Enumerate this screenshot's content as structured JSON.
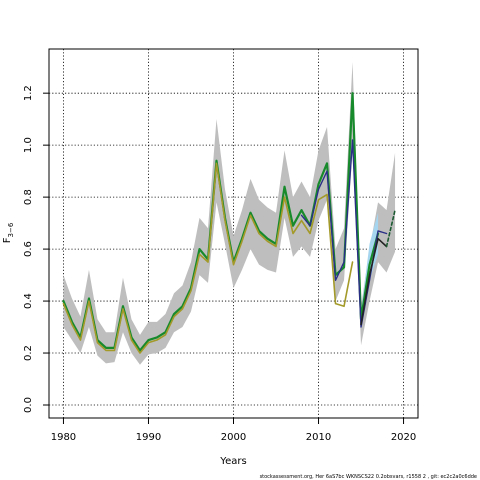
{
  "chart_data": {
    "type": "line",
    "xlabel": "Years",
    "ylabel_main": "F",
    "ylabel_sub": "3−6",
    "footer": "stockassessment.org,  Her  6aS7bc  WKNSCS22  0.2obsvars,  r1558 2 ,  git:  ec2c2a0c6dde",
    "xlim": [
      1978.3,
      2021.7
    ],
    "ylim": [
      -0.05,
      1.37
    ],
    "xticks": [
      1980,
      1990,
      2000,
      2010,
      2020
    ],
    "xtick_labels": [
      "1980",
      "1990",
      "2000",
      "2010",
      "2020"
    ],
    "yticks": [
      0.0,
      0.2,
      0.4,
      0.6,
      0.8,
      1.0,
      1.2
    ],
    "ytick_labels": [
      "0.0",
      "0.2",
      "0.4",
      "0.6",
      "0.8",
      "1.0",
      "1.2"
    ],
    "grid": true,
    "colors": {
      "band": "#bebebe",
      "band_light_blue": "#a6d6ef",
      "green": "#178a2c",
      "olive": "#a39a2a",
      "blue": "#2a2f86",
      "black": "#222222",
      "darkgreen_dashed": "#1b5a31"
    },
    "bands": [
      {
        "name": "band",
        "x": [
          1980,
          1981,
          1982,
          1983,
          1984,
          1985,
          1986,
          1987,
          1988,
          1989,
          1990,
          1991,
          1992,
          1993,
          1994,
          1995,
          1996,
          1997,
          1998,
          1999,
          2000,
          2001,
          2002,
          2003,
          2004,
          2005,
          2006,
          2007,
          2008,
          2009,
          2010,
          2011,
          2012,
          2013,
          2014,
          2015,
          2016,
          2017,
          2018,
          2019
        ],
        "upper": [
          0.5,
          0.41,
          0.34,
          0.52,
          0.33,
          0.28,
          0.28,
          0.49,
          0.33,
          0.27,
          0.32,
          0.32,
          0.35,
          0.43,
          0.46,
          0.55,
          0.72,
          0.68,
          1.1,
          0.83,
          0.65,
          0.75,
          0.87,
          0.79,
          0.76,
          0.74,
          0.98,
          0.8,
          0.86,
          0.8,
          0.98,
          1.07,
          0.6,
          0.68,
          1.32,
          0.38,
          0.6,
          0.78,
          0.75,
          0.97
        ],
        "lower": [
          0.3,
          0.25,
          0.2,
          0.3,
          0.19,
          0.16,
          0.165,
          0.28,
          0.2,
          0.155,
          0.195,
          0.2,
          0.22,
          0.28,
          0.3,
          0.36,
          0.5,
          0.47,
          0.78,
          0.62,
          0.45,
          0.52,
          0.6,
          0.54,
          0.52,
          0.51,
          0.72,
          0.57,
          0.61,
          0.57,
          0.71,
          0.79,
          0.4,
          0.48,
          0.98,
          0.23,
          0.4,
          0.55,
          0.51,
          0.59
        ]
      },
      {
        "name": "band_light_blue",
        "x": [
          2015,
          2016,
          2017
        ],
        "upper": [
          0.36,
          0.62,
          0.74
        ],
        "lower": [
          0.3,
          0.48,
          0.58
        ]
      }
    ],
    "series": [
      {
        "color": "green",
        "width": 2.2,
        "dashed": false,
        "x": [
          1980,
          1981,
          1982,
          1983,
          1984,
          1985,
          1986,
          1987,
          1988,
          1989,
          1990,
          1991,
          1992,
          1993,
          1994,
          1995,
          1996,
          1997,
          1998,
          1999,
          2000,
          2001,
          2002,
          2003,
          2004,
          2005,
          2006,
          2007,
          2008,
          2009,
          2010,
          2011,
          2012,
          2013,
          2014,
          2015,
          2016,
          2017
        ],
        "y": [
          0.4,
          0.32,
          0.26,
          0.41,
          0.25,
          0.22,
          0.22,
          0.38,
          0.26,
          0.21,
          0.25,
          0.26,
          0.28,
          0.35,
          0.38,
          0.45,
          0.6,
          0.56,
          0.94,
          0.72,
          0.55,
          0.64,
          0.74,
          0.67,
          0.64,
          0.62,
          0.84,
          0.69,
          0.75,
          0.69,
          0.85,
          0.93,
          0.5,
          0.53,
          1.2,
          0.33,
          0.54,
          0.66
        ]
      },
      {
        "color": "blue",
        "width": 1.4,
        "dashed": false,
        "x": [
          2008,
          2009,
          2010,
          2011,
          2012,
          2013,
          2014,
          2015,
          2016,
          2017,
          2018
        ],
        "y": [
          0.73,
          0.69,
          0.83,
          0.9,
          0.48,
          0.55,
          1.02,
          0.3,
          0.48,
          0.67,
          0.66
        ]
      },
      {
        "color": "olive",
        "width": 1.6,
        "dashed": false,
        "x": [
          1980,
          1981,
          1982,
          1983,
          1984,
          1985,
          1986,
          1987,
          1988,
          1989,
          1990,
          1991,
          1992,
          1993,
          1994,
          1995,
          1996,
          1997,
          1998,
          1999,
          2000,
          2001,
          2002,
          2003,
          2004,
          2005,
          2006,
          2007,
          2008,
          2009,
          2010,
          2011,
          2012,
          2013,
          2014
        ],
        "y": [
          0.39,
          0.31,
          0.25,
          0.4,
          0.24,
          0.21,
          0.21,
          0.37,
          0.25,
          0.2,
          0.24,
          0.25,
          0.27,
          0.34,
          0.37,
          0.44,
          0.58,
          0.55,
          0.93,
          0.71,
          0.54,
          0.63,
          0.73,
          0.66,
          0.63,
          0.61,
          0.8,
          0.66,
          0.71,
          0.66,
          0.79,
          0.81,
          0.39,
          0.38,
          0.55
        ]
      },
      {
        "color": "black",
        "width": 1.6,
        "dashed": false,
        "x": [
          2015,
          2016,
          2017,
          2018
        ],
        "y": [
          0.31,
          0.5,
          0.64,
          0.61
        ]
      },
      {
        "color": "darkgreen_dashed",
        "width": 1.6,
        "dashed": true,
        "x": [
          2018,
          2019
        ],
        "y": [
          0.61,
          0.75
        ]
      }
    ]
  }
}
